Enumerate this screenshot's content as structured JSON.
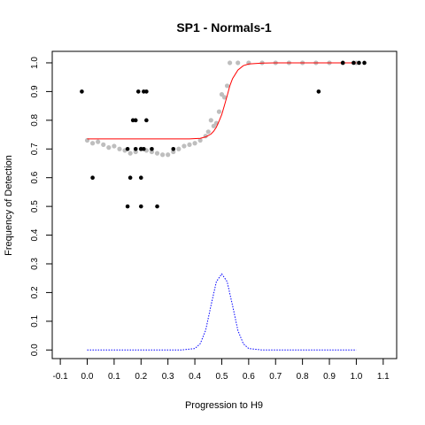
{
  "chart_data": {
    "type": "scatter",
    "title": "SP1 - Normals-1",
    "xlabel": "Progression to H9",
    "ylabel": "Frequency of Detection",
    "xlim": [
      -0.13,
      1.15
    ],
    "ylim": [
      -0.03,
      1.04
    ],
    "x_ticks": [
      -0.1,
      0.0,
      0.1,
      0.2,
      0.3,
      0.4,
      0.5,
      0.6,
      0.7,
      0.8,
      0.9,
      1.0,
      1.1
    ],
    "y_ticks": [
      0.0,
      0.1,
      0.2,
      0.3,
      0.4,
      0.5,
      0.6,
      0.7,
      0.8,
      0.9,
      1.0
    ],
    "grid": false,
    "legend": "none",
    "colors": {
      "observed": "#000000",
      "smoothed": "#bebebe",
      "fit": "#ff0000",
      "density": "#0000ff"
    },
    "series": [
      {
        "kind": "points",
        "color_key": "observed",
        "x": [
          -0.02,
          0.02,
          0.15,
          0.15,
          0.16,
          0.17,
          0.18,
          0.18,
          0.19,
          0.2,
          0.2,
          0.2,
          0.21,
          0.21,
          0.22,
          0.22,
          0.24,
          0.26,
          0.32,
          0.86,
          0.95,
          0.99,
          1.01,
          1.03
        ],
        "y": [
          0.9,
          0.6,
          0.7,
          0.5,
          0.6,
          0.8,
          0.8,
          0.7,
          0.9,
          0.5,
          0.6,
          0.7,
          0.9,
          0.7,
          0.9,
          0.8,
          0.7,
          0.5,
          0.7,
          0.9,
          1.0,
          1.0,
          1.0,
          1.0
        ]
      },
      {
        "kind": "smoothed",
        "color_key": "smoothed",
        "x": [
          0.0,
          0.02,
          0.04,
          0.06,
          0.08,
          0.1,
          0.12,
          0.14,
          0.16,
          0.18,
          0.2,
          0.22,
          0.24,
          0.26,
          0.28,
          0.3,
          0.32,
          0.34,
          0.36,
          0.38,
          0.4,
          0.42,
          0.44,
          0.45,
          0.46,
          0.47,
          0.48,
          0.49,
          0.5,
          0.51,
          0.52,
          0.53,
          0.56,
          0.6,
          0.65,
          0.7,
          0.75,
          0.8,
          0.85,
          0.9,
          0.95,
          1.0
        ],
        "y": [
          0.73,
          0.72,
          0.725,
          0.715,
          0.705,
          0.71,
          0.7,
          0.695,
          0.685,
          0.69,
          0.7,
          0.695,
          0.69,
          0.685,
          0.68,
          0.68,
          0.69,
          0.7,
          0.71,
          0.715,
          0.72,
          0.73,
          0.745,
          0.76,
          0.8,
          0.78,
          0.79,
          0.83,
          0.89,
          0.88,
          0.92,
          1.0,
          1.0,
          1.0,
          1.0,
          1.0,
          1.0,
          1.0,
          1.0,
          1.0,
          1.0,
          1.0
        ]
      },
      {
        "kind": "fit",
        "color_key": "fit",
        "x": [
          0.0,
          0.1,
          0.2,
          0.3,
          0.38,
          0.42,
          0.44,
          0.46,
          0.47,
          0.48,
          0.49,
          0.5,
          0.51,
          0.52,
          0.53,
          0.54,
          0.56,
          0.58,
          0.6,
          0.65,
          0.7,
          0.8,
          0.9,
          1.0
        ],
        "y": [
          0.735,
          0.735,
          0.735,
          0.735,
          0.735,
          0.737,
          0.742,
          0.752,
          0.762,
          0.776,
          0.797,
          0.82,
          0.852,
          0.885,
          0.92,
          0.945,
          0.975,
          0.99,
          0.996,
          0.999,
          1.0,
          1.0,
          1.0,
          1.0
        ]
      },
      {
        "kind": "density",
        "color_key": "density",
        "x": [
          0.0,
          0.35,
          0.4,
          0.42,
          0.44,
          0.46,
          0.48,
          0.5,
          0.52,
          0.54,
          0.56,
          0.58,
          0.6,
          0.65,
          1.0
        ],
        "y": [
          0.0,
          0.0,
          0.005,
          0.022,
          0.068,
          0.155,
          0.238,
          0.265,
          0.238,
          0.155,
          0.068,
          0.022,
          0.005,
          0.0,
          0.0
        ]
      }
    ]
  }
}
